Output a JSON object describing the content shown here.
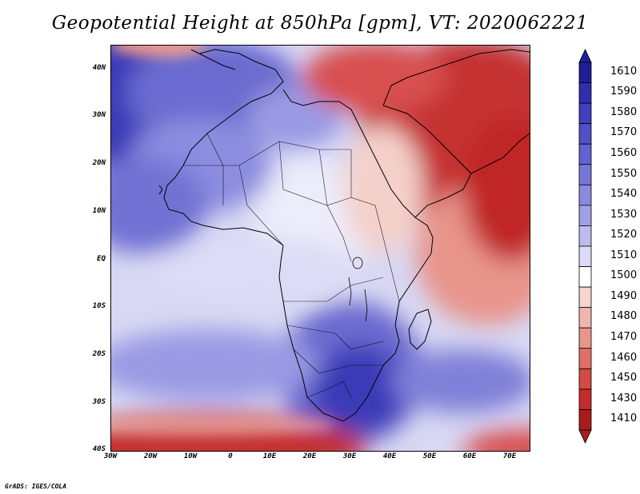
{
  "title": "Geopotential Height at 850hPa [gpm], VT: 2020062221",
  "map": {
    "lat_labels": [
      "40N",
      "30N",
      "20N",
      "10N",
      "EQ",
      "10S",
      "20S",
      "30S",
      "40S"
    ],
    "lon_labels": [
      "30W",
      "20W",
      "10W",
      "0",
      "10E",
      "20E",
      "30E",
      "40E",
      "50E",
      "60E",
      "70E"
    ]
  },
  "legend": {
    "levels": [
      "1610",
      "1590",
      "1580",
      "1570",
      "1560",
      "1550",
      "1540",
      "1530",
      "1520",
      "1510",
      "1500",
      "1490",
      "1480",
      "1470",
      "1460",
      "1450",
      "1430",
      "1410"
    ],
    "colors": [
      "#1f1f9a",
      "#2e2eb0",
      "#3f3fc0",
      "#5050c8",
      "#6262d0",
      "#7676d8",
      "#8a8adf",
      "#a0a0e6",
      "#bcbcee",
      "#dcdcf6",
      "#ffffff",
      "#f6d4d0",
      "#efb6ae",
      "#e8968c",
      "#df7068",
      "#d44a44",
      "#c52b2b",
      "#a81c1c"
    ]
  },
  "credit": "GrADS: IGES/COLA"
}
